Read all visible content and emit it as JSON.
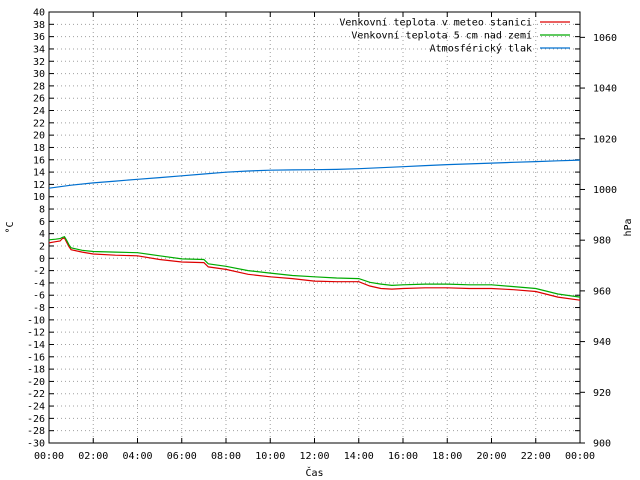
{
  "chart_data": {
    "type": "line",
    "title": "",
    "xlabel": "Čas",
    "ylabel": "°C",
    "y2label": "hPa",
    "xlim": [
      0,
      24
    ],
    "ylim": [
      -30,
      40
    ],
    "y2lim": [
      900,
      1070
    ],
    "x_ticks": [
      0,
      2,
      4,
      6,
      8,
      10,
      12,
      14,
      16,
      18,
      20,
      22,
      24
    ],
    "x_tick_labels": [
      "00:00",
      "02:00",
      "04:00",
      "06:00",
      "08:00",
      "10:00",
      "12:00",
      "14:00",
      "16:00",
      "18:00",
      "20:00",
      "22:00",
      "00:00"
    ],
    "y_ticks": [
      40,
      38,
      36,
      34,
      32,
      30,
      28,
      26,
      24,
      22,
      20,
      18,
      16,
      14,
      12,
      10,
      8,
      6,
      4,
      2,
      0,
      -2,
      -4,
      -6,
      -8,
      -10,
      -12,
      -14,
      -16,
      -18,
      -20,
      -22,
      -24,
      -26,
      -28,
      -30
    ],
    "y2_ticks": [
      900,
      920,
      940,
      960,
      980,
      1000,
      1020,
      1040,
      1060
    ],
    "grid": true,
    "legend_position": "top-right",
    "series": [
      {
        "name": "Venkovní teplota v meteo stanici",
        "axis": "y",
        "color": "#dd0000",
        "x": [
          0,
          0.3,
          0.5,
          0.6,
          0.7,
          0.8,
          0.9,
          1.0,
          1.5,
          2.0,
          3.0,
          4.0,
          5.0,
          6.0,
          7.0,
          7.2,
          8.0,
          9.0,
          10.0,
          11.0,
          12.0,
          13.0,
          14.0,
          14.5,
          15.0,
          15.5,
          16.0,
          17.0,
          18.0,
          19.0,
          20.0,
          21.0,
          22.0,
          23.0,
          24.0
        ],
        "y": [
          2.5,
          2.7,
          2.8,
          3.2,
          3.3,
          2.6,
          1.9,
          1.4,
          1.0,
          0.7,
          0.5,
          0.4,
          -0.2,
          -0.6,
          -0.7,
          -1.4,
          -1.8,
          -2.6,
          -3.0,
          -3.3,
          -3.7,
          -3.8,
          -3.8,
          -4.5,
          -4.9,
          -5.0,
          -4.9,
          -4.8,
          -4.8,
          -4.9,
          -4.9,
          -5.1,
          -5.4,
          -6.3,
          -6.8
        ]
      },
      {
        "name": "Venkovní teplota 5 cm nad zemí",
        "axis": "y",
        "color": "#00aa00",
        "x": [
          0,
          0.3,
          0.5,
          0.6,
          0.7,
          0.8,
          0.9,
          1.0,
          1.5,
          2.0,
          3.0,
          4.0,
          5.0,
          6.0,
          7.0,
          7.2,
          8.0,
          9.0,
          10.0,
          11.0,
          12.0,
          13.0,
          14.0,
          14.5,
          15.0,
          15.5,
          16.0,
          17.0,
          18.0,
          19.0,
          20.0,
          21.0,
          22.0,
          23.0,
          24.0
        ],
        "y": [
          3.0,
          3.1,
          3.2,
          3.4,
          3.5,
          2.9,
          2.2,
          1.7,
          1.3,
          1.1,
          1.0,
          0.9,
          0.4,
          -0.1,
          -0.2,
          -0.9,
          -1.3,
          -2.0,
          -2.4,
          -2.8,
          -3.0,
          -3.2,
          -3.3,
          -3.9,
          -4.2,
          -4.4,
          -4.3,
          -4.2,
          -4.2,
          -4.3,
          -4.3,
          -4.6,
          -4.9,
          -5.8,
          -6.3
        ]
      },
      {
        "name": "Atmosférický tlak",
        "axis": "y2",
        "color": "#0070d0",
        "x": [
          0,
          1,
          2,
          3,
          4,
          5,
          6,
          7,
          8,
          9,
          10,
          11,
          12,
          13,
          14,
          15,
          16,
          17,
          18,
          19,
          20,
          21,
          22,
          23,
          24
        ],
        "y": [
          1000.5,
          1001.7,
          1002.6,
          1003.3,
          1004.0,
          1004.7,
          1005.4,
          1006.1,
          1006.8,
          1007.3,
          1007.6,
          1007.7,
          1007.8,
          1007.9,
          1008.2,
          1008.6,
          1009.0,
          1009.4,
          1009.8,
          1010.1,
          1010.4,
          1010.7,
          1011.0,
          1011.3,
          1011.6
        ]
      }
    ]
  }
}
